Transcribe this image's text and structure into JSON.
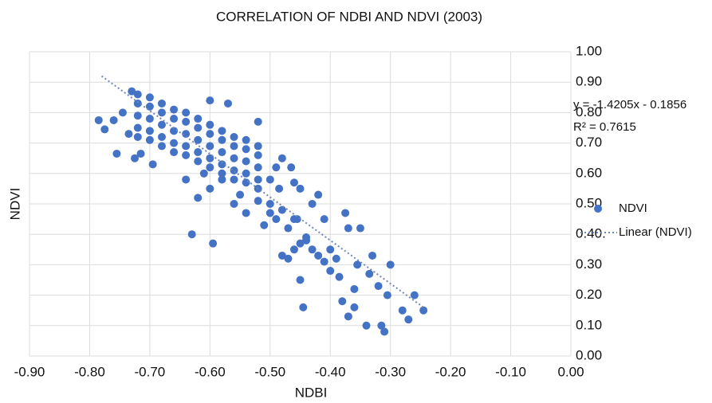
{
  "chart_data": {
    "type": "scatter",
    "title": "CORRELATION OF NDBI AND NDVI (2003)",
    "x_label": "NDBI",
    "y_label": "NDVI",
    "annotations": [
      "y = -1.4205x - 0.1856",
      "R² = 0.7615"
    ],
    "grid": true,
    "xlim": [
      -0.9,
      0
    ],
    "ylim": [
      0,
      1
    ],
    "xticks": [
      {
        "value": -0.9,
        "label": "-0.90"
      },
      {
        "value": -0.8,
        "label": "-0.80"
      },
      {
        "value": -0.7,
        "label": "-0.70"
      },
      {
        "value": -0.6,
        "label": "-0.60"
      },
      {
        "value": -0.5,
        "label": "-0.50"
      },
      {
        "value": -0.4,
        "label": "-0.40"
      },
      {
        "value": -0.3,
        "label": "-0.30"
      },
      {
        "value": -0.2,
        "label": "-0.20"
      },
      {
        "value": -0.1,
        "label": "-0.10"
      },
      {
        "value": 0,
        "label": "0.00"
      }
    ],
    "yticks": [
      {
        "value": 0,
        "label": "0.00"
      },
      {
        "value": 0.1,
        "label": "0.10"
      },
      {
        "value": 0.2,
        "label": "0.20"
      },
      {
        "value": 0.3,
        "label": "0.30"
      },
      {
        "value": 0.4,
        "label": "0.40."
      },
      {
        "value": 0.5,
        "label": "0.50"
      },
      {
        "value": 0.6,
        "label": "0.60"
      },
      {
        "value": 0.7,
        "label": "0.70"
      },
      {
        "value": 0.8,
        "label": "0.80"
      },
      {
        "value": 0.9,
        "label": "0.90"
      },
      {
        "value": 1,
        "label": "1.00"
      }
    ],
    "legend": "right",
    "series": [
      {
        "name": "NDVI",
        "color": "#4472c4",
        "x": [
          -0.72,
          -0.72,
          -0.72,
          -0.72,
          -0.72,
          -0.7,
          -0.7,
          -0.7,
          -0.7,
          -0.7,
          -0.68,
          -0.68,
          -0.68,
          -0.68,
          -0.68,
          -0.66,
          -0.66,
          -0.66,
          -0.66,
          -0.66,
          -0.64,
          -0.64,
          -0.64,
          -0.64,
          -0.64,
          -0.62,
          -0.62,
          -0.62,
          -0.62,
          -0.62,
          -0.6,
          -0.6,
          -0.6,
          -0.6,
          -0.6,
          -0.58,
          -0.58,
          -0.58,
          -0.58,
          -0.58,
          -0.56,
          -0.56,
          -0.56,
          -0.56,
          -0.56,
          -0.54,
          -0.54,
          -0.54,
          -0.54,
          -0.54,
          -0.52,
          -0.52,
          -0.52,
          -0.52,
          -0.52,
          -0.785,
          -0.775,
          -0.76,
          -0.755,
          -0.745,
          -0.735,
          -0.73,
          -0.725,
          -0.715,
          -0.695,
          -0.63,
          -0.57,
          -0.595,
          -0.6,
          -0.58,
          -0.52,
          -0.465,
          -0.45,
          -0.445,
          -0.45,
          -0.43,
          -0.42,
          -0.41,
          -0.4,
          -0.39,
          -0.385,
          -0.38,
          -0.375,
          -0.37,
          -0.36,
          -0.355,
          -0.35,
          -0.34,
          -0.335,
          -0.32,
          -0.315,
          -0.31,
          -0.305,
          -0.28,
          -0.27,
          -0.26,
          -0.245,
          -0.37,
          -0.36,
          -0.3,
          -0.33,
          -0.4,
          -0.48,
          -0.5,
          -0.47,
          -0.46,
          -0.44,
          -0.43,
          -0.42,
          -0.41,
          -0.47,
          -0.48,
          -0.46,
          -0.45,
          -0.44,
          -0.455,
          -0.49,
          -0.51,
          -0.5,
          -0.52,
          -0.5,
          -0.49,
          -0.48,
          -0.485,
          -0.46,
          -0.56,
          -0.55,
          -0.54,
          -0.62,
          -0.6,
          -0.64,
          -0.61
        ],
        "values": [
          0.79,
          0.83,
          0.75,
          0.86,
          0.72,
          0.78,
          0.82,
          0.74,
          0.85,
          0.71,
          0.76,
          0.8,
          0.72,
          0.83,
          0.69,
          0.74,
          0.78,
          0.7,
          0.81,
          0.67,
          0.73,
          0.77,
          0.69,
          0.8,
          0.66,
          0.71,
          0.75,
          0.67,
          0.78,
          0.64,
          0.69,
          0.73,
          0.65,
          0.76,
          0.62,
          0.67,
          0.71,
          0.63,
          0.74,
          0.6,
          0.65,
          0.69,
          0.61,
          0.72,
          0.58,
          0.64,
          0.68,
          0.6,
          0.71,
          0.57,
          0.62,
          0.66,
          0.58,
          0.69,
          0.55,
          0.775,
          0.745,
          0.775,
          0.665,
          0.8,
          0.73,
          0.87,
          0.65,
          0.665,
          0.63,
          0.4,
          0.83,
          0.37,
          0.84,
          0.58,
          0.77,
          0.62,
          0.55,
          0.16,
          0.25,
          0.5,
          0.53,
          0.45,
          0.28,
          0.32,
          0.26,
          0.18,
          0.47,
          0.42,
          0.22,
          0.3,
          0.42,
          0.1,
          0.27,
          0.23,
          0.1,
          0.08,
          0.2,
          0.15,
          0.12,
          0.2,
          0.15,
          0.13,
          0.16,
          0.3,
          0.33,
          0.35,
          0.48,
          0.5,
          0.42,
          0.45,
          0.38,
          0.35,
          0.33,
          0.31,
          0.32,
          0.33,
          0.35,
          0.37,
          0.39,
          0.45,
          0.45,
          0.43,
          0.47,
          0.51,
          0.58,
          0.62,
          0.65,
          0.55,
          0.57,
          0.5,
          0.53,
          0.47,
          0.52,
          0.55,
          0.58,
          0.6
        ]
      },
      {
        "name": "Linear (NDVI)",
        "color": "#6f86b8",
        "kind": "trendline",
        "x": [
          -0.78,
          -0.245
        ],
        "values": [
          0.92,
          0.16
        ]
      }
    ]
  }
}
